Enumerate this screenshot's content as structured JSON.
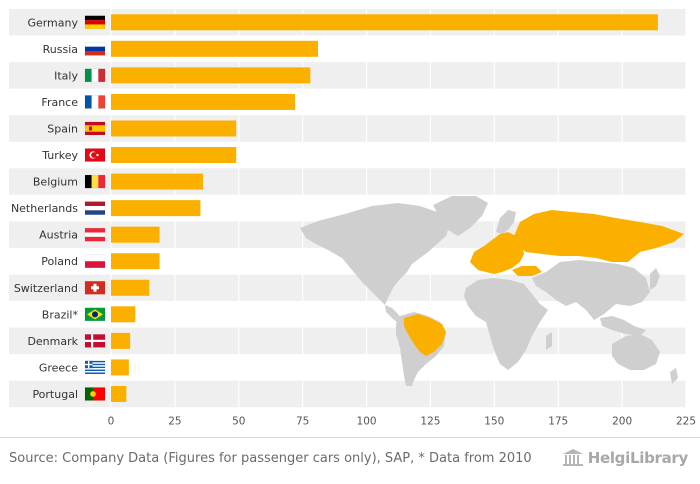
{
  "chart_data": {
    "type": "bar",
    "orientation": "horizontal",
    "title": "",
    "xlabel": "",
    "ylabel": "",
    "categories": [
      "Germany",
      "Russia",
      "Italy",
      "France",
      "Spain",
      "Turkey",
      "Belgium",
      "Netherlands",
      "Austria",
      "Poland",
      "Switzerland",
      "Brazil*",
      "Denmark",
      "Greece",
      "Portugal"
    ],
    "values": [
      214,
      81,
      78,
      72,
      49,
      49,
      36,
      35,
      19,
      19,
      15,
      9.5,
      7.5,
      7,
      6
    ],
    "xlim": [
      0,
      225
    ],
    "xticks": [
      0,
      25,
      50,
      75,
      100,
      125,
      150,
      175,
      200,
      225
    ],
    "bar_color": "#fbb000",
    "band_color": "#efefef",
    "grid": true
  },
  "flags": [
    "germany-flag",
    "russia-flag",
    "italy-flag",
    "france-flag",
    "spain-flag",
    "turkey-flag",
    "belgium-flag",
    "netherlands-flag",
    "austria-flag",
    "poland-flag",
    "switzerland-flag",
    "brazil-flag",
    "denmark-flag",
    "greece-flag",
    "portugal-flag"
  ],
  "map": {
    "highlight_color": "#fbb000",
    "land_color": "#cfcfcf"
  },
  "footer": {
    "source": "Source: Company Data (Figures for passenger cars only), SAP, * Data from 2010",
    "logo": "HelgiLibrary"
  }
}
